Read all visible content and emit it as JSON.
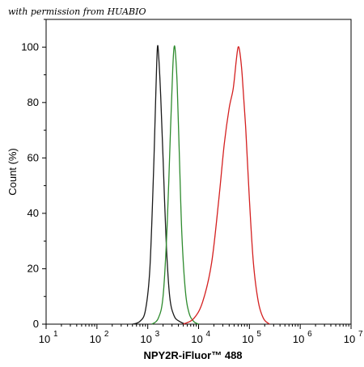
{
  "watermark": "with permission from HUABIO",
  "chart_data": {
    "type": "line",
    "title": "",
    "xlabel": "NPY2R-iFluor™ 488",
    "ylabel": "Count  (%)",
    "xscale": "log",
    "xlim": [
      10,
      10000000
    ],
    "ylim": [
      0,
      110
    ],
    "grid": false,
    "x_tick_labels": [
      "10",
      "10",
      "10",
      "10",
      "10",
      "10",
      "10"
    ],
    "x_tick_exponents": [
      "1",
      "2",
      "3",
      "4",
      "5",
      "6",
      "7"
    ],
    "x_ticks": [
      10,
      100,
      1000,
      10000,
      100000,
      1000000,
      10000000
    ],
    "y_ticks": [
      0,
      20,
      40,
      60,
      80,
      100
    ],
    "y_tick_labels": [
      "0",
      "20",
      "40",
      "60",
      "80",
      "100"
    ],
    "series": [
      {
        "color": "#1a1a1a",
        "x": [
          500,
          700,
          900,
          1100,
          1300,
          1450,
          1550,
          1650,
          1800,
          2000,
          2300,
          2700,
          3300,
          4200,
          5500
        ],
        "y": [
          0,
          1,
          5,
          20,
          55,
          85,
          100,
          96,
          82,
          60,
          30,
          10,
          3,
          1,
          0
        ]
      },
      {
        "color": "#2e8b2e",
        "x": [
          1200,
          1600,
          2000,
          2400,
          2800,
          3100,
          3300,
          3500,
          3800,
          4200,
          4700,
          5500,
          6500,
          8000,
          10000
        ],
        "y": [
          0,
          2,
          10,
          35,
          70,
          92,
          100,
          98,
          86,
          60,
          32,
          12,
          4,
          1,
          0
        ]
      },
      {
        "color": "#d42020",
        "x": [
          5000,
          8000,
          12000,
          18000,
          25000,
          32000,
          40000,
          48000,
          55000,
          60000,
          65000,
          72000,
          85000,
          100000,
          120000,
          150000,
          190000,
          250000
        ],
        "y": [
          0,
          2,
          8,
          22,
          45,
          65,
          78,
          85,
          95,
          100,
          98,
          90,
          70,
          45,
          22,
          8,
          2,
          0
        ]
      }
    ]
  }
}
